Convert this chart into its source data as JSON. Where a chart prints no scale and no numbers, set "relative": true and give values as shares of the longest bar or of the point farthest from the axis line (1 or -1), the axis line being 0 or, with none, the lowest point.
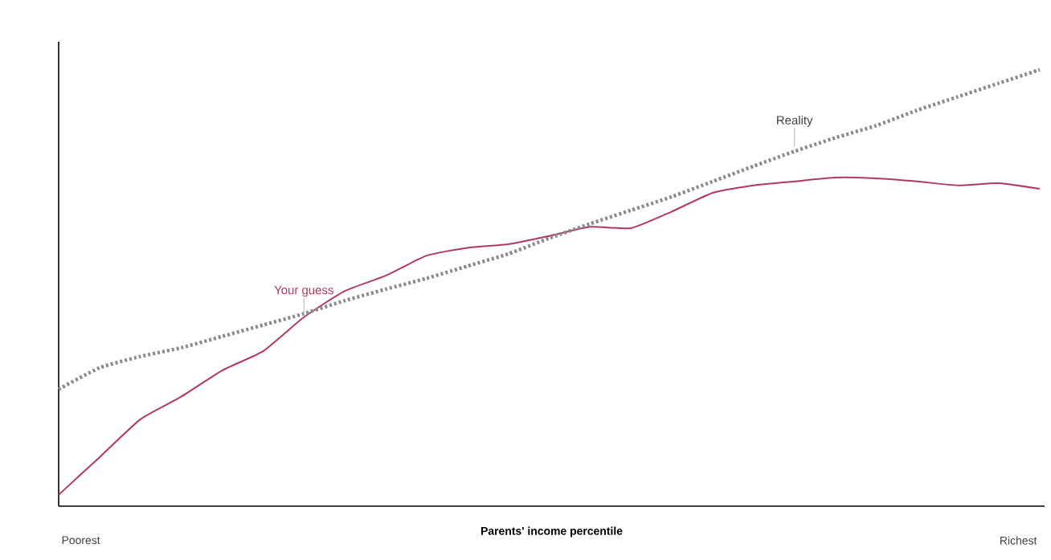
{
  "chart_data": {
    "type": "line",
    "relative": true,
    "xlabel": "Parents' income percentile",
    "categories": [
      null,
      null,
      null,
      null,
      null,
      null,
      null,
      null,
      null,
      null,
      null,
      null,
      null,
      null,
      null,
      null,
      null,
      null,
      null,
      null,
      null,
      null,
      null,
      null,
      null
    ],
    "series": [
      {
        "name": "Your guess",
        "color": "#b03a5b",
        "line_style": "solid",
        "values": [
          0.026,
          0.112,
          0.199,
          0.251,
          0.311,
          0.355,
          0.433,
          0.493,
          0.528,
          0.574,
          0.592,
          0.6,
          0.619,
          0.64,
          0.637,
          0.675,
          0.718,
          0.735,
          0.744,
          0.753,
          0.751,
          0.744,
          0.735,
          0.74,
          0.727
        ]
      },
      {
        "name": "Reality",
        "color": "#8a8a8a",
        "line_style": "dotted",
        "values": [
          0.268,
          0.317,
          0.343,
          0.363,
          0.389,
          0.415,
          0.441,
          0.471,
          0.497,
          0.522,
          0.55,
          0.578,
          0.614,
          0.647,
          0.678,
          0.709,
          0.744,
          0.779,
          0.813,
          0.844,
          0.872,
          0.907,
          0.938,
          0.969,
          1.0
        ]
      }
    ],
    "annotations": [
      "Poorest",
      "Richest"
    ]
  }
}
